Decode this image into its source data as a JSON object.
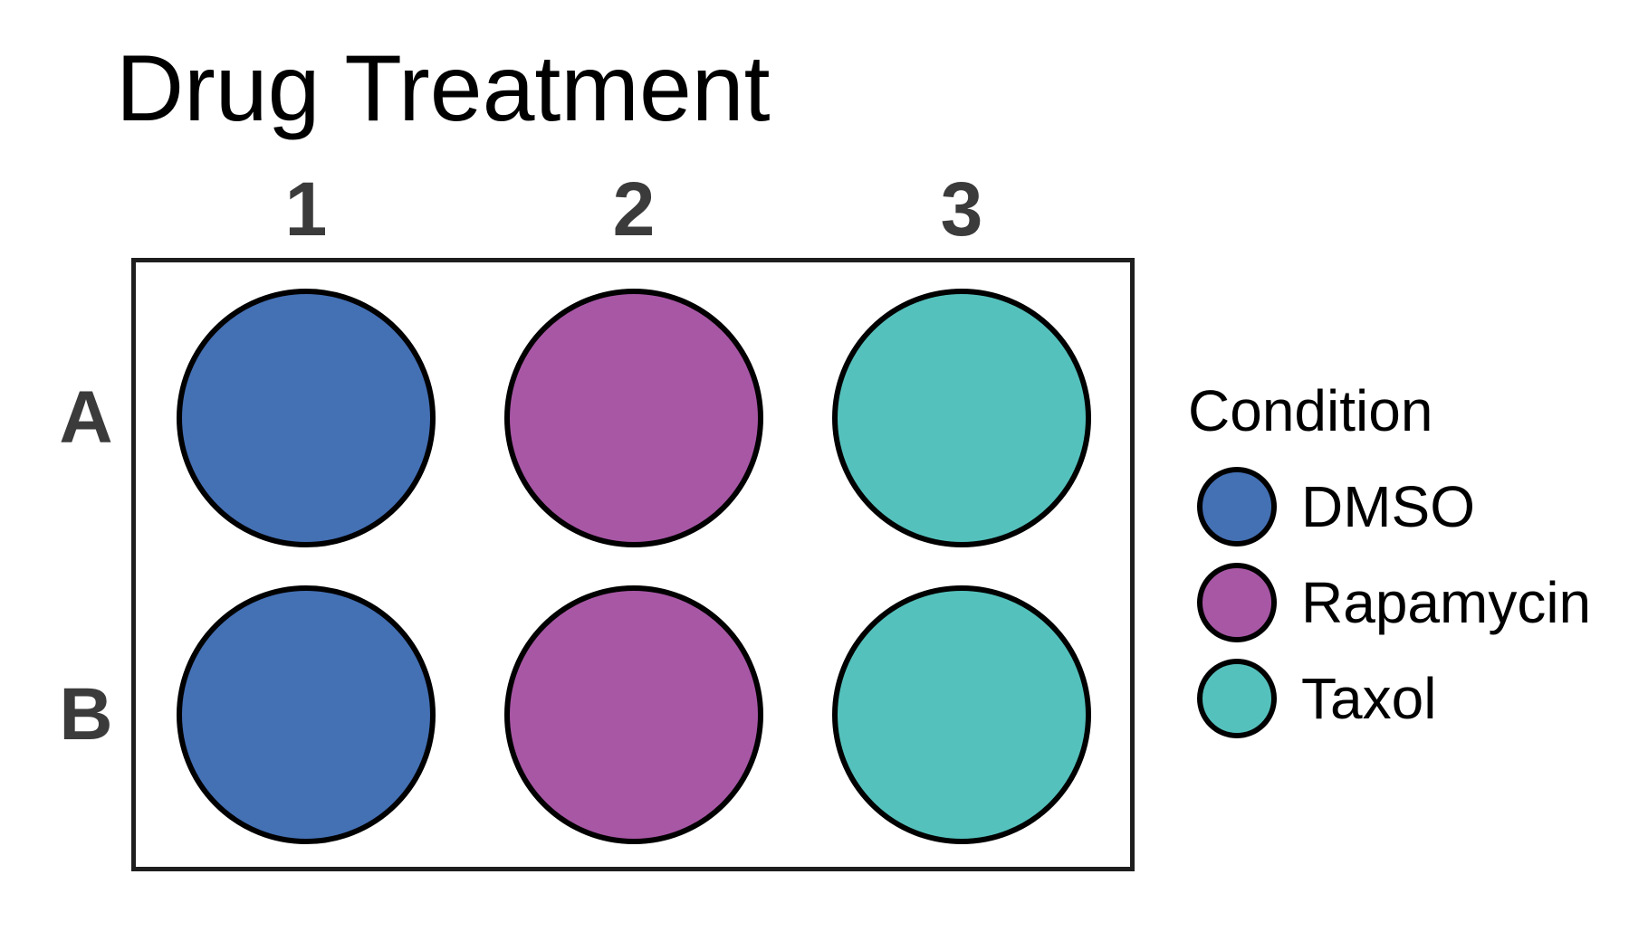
{
  "title": "Drug Treatment",
  "plate": {
    "column_labels": [
      "1",
      "2",
      "3"
    ],
    "row_labels": [
      "A",
      "B"
    ],
    "wells": [
      {
        "row": "A",
        "col": "1",
        "condition": "DMSO"
      },
      {
        "row": "A",
        "col": "2",
        "condition": "Rapamycin"
      },
      {
        "row": "A",
        "col": "3",
        "condition": "Taxol"
      },
      {
        "row": "B",
        "col": "1",
        "condition": "DMSO"
      },
      {
        "row": "B",
        "col": "2",
        "condition": "Rapamycin"
      },
      {
        "row": "B",
        "col": "3",
        "condition": "Taxol"
      }
    ]
  },
  "legend": {
    "title": "Condition",
    "items": [
      {
        "label": "DMSO",
        "color": "#4470B4"
      },
      {
        "label": "Rapamycin",
        "color": "#A857A5"
      },
      {
        "label": "Taxol",
        "color": "#55C1BC"
      }
    ]
  },
  "colors": {
    "background": "#FFFFFF",
    "title_text": "#000000",
    "axis_label_gray": "#3B3B3B",
    "plate_border": "#1E1E1E",
    "well_outline": "#000000",
    "legend_text": "#000000"
  },
  "chart_data": {
    "type": "table",
    "title": "Drug Treatment",
    "columns": [
      "1",
      "2",
      "3"
    ],
    "rows": [
      "A",
      "B"
    ],
    "values": [
      [
        "DMSO",
        "Rapamycin",
        "Taxol"
      ],
      [
        "DMSO",
        "Rapamycin",
        "Taxol"
      ]
    ],
    "legend_title": "Condition",
    "legend_entries": [
      "DMSO",
      "Rapamycin",
      "Taxol"
    ],
    "legend_position": "right"
  }
}
